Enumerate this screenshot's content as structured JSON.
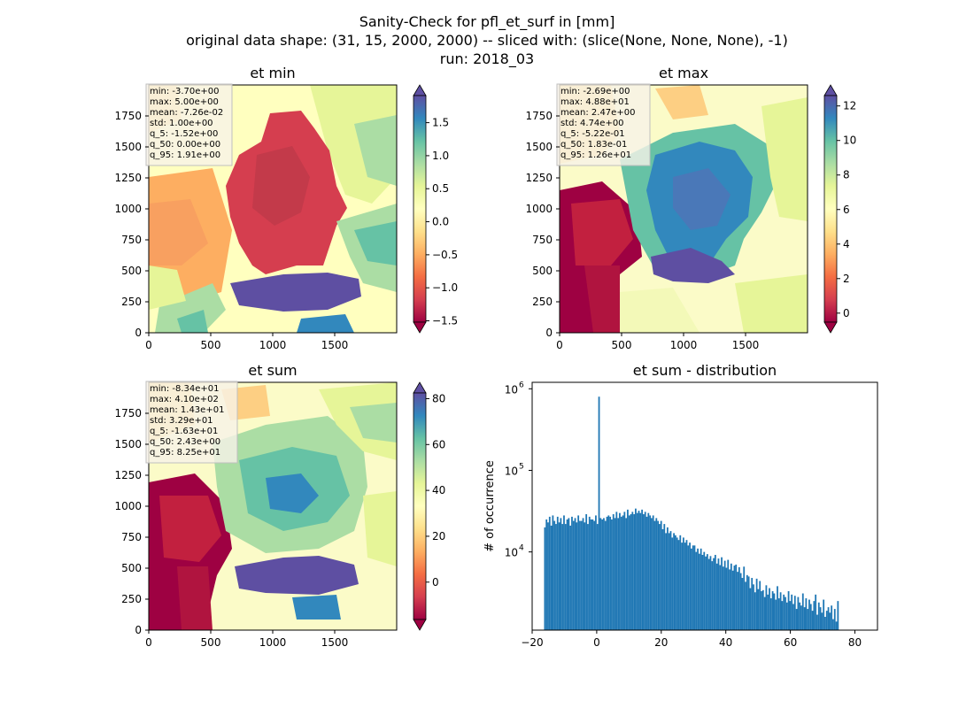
{
  "suptitle": {
    "line1": "Sanity-Check for pfl_et_surf in [mm]",
    "line2": "original data shape: (31, 15, 2000, 2000) -- sliced with: (slice(None, None, None), -1)",
    "line3": "run: 2018_03"
  },
  "panels": [
    {
      "title": "et min",
      "stats": [
        "min: -3.70e+00",
        "max: 5.00e+00",
        "mean: -7.26e-02",
        "std: 1.00e+00",
        "q_5: -1.52e+00",
        "q_50: 0.00e+00",
        "q_95: 1.91e+00"
      ],
      "xticks": [
        "0",
        "500",
        "1000",
        "1500"
      ],
      "yticks": [
        "0",
        "250",
        "500",
        "750",
        "1000",
        "1250",
        "1500",
        "1750"
      ],
      "colorbar": {
        "vmin": -1.52,
        "vmax": 1.91,
        "ticks": [
          "1.5",
          "1.0",
          "0.5",
          "0.0",
          "−0.5",
          "−1.0",
          "−1.5"
        ],
        "tick_values": [
          1.5,
          1.0,
          0.5,
          0.0,
          -0.5,
          -1.0,
          -1.5
        ],
        "colormap": "Spectral"
      }
    },
    {
      "title": "et max",
      "stats": [
        "min: -2.69e+00",
        "max: 4.88e+01",
        "mean: 2.47e+00",
        "std: 4.74e+00",
        "q_5: -5.22e-01",
        "q_50: 1.83e-01",
        "q_95: 1.26e+01"
      ],
      "xticks": [
        "0",
        "500",
        "1000",
        "1500"
      ],
      "yticks": [
        "0",
        "250",
        "500",
        "750",
        "1000",
        "1250",
        "1500",
        "1750"
      ],
      "colorbar": {
        "vmin": -0.522,
        "vmax": 12.6,
        "ticks": [
          "12",
          "10",
          "8",
          "6",
          "4",
          "2",
          "0"
        ],
        "tick_values": [
          12,
          10,
          8,
          6,
          4,
          2,
          0
        ],
        "colormap": "Spectral"
      }
    },
    {
      "title": "et sum",
      "stats": [
        "min: -8.34e+01",
        "max: 4.10e+02",
        "mean: 1.43e+01",
        "std: 3.29e+01",
        "q_5: -1.63e+01",
        "q_50: 2.43e+00",
        "q_95: 8.25e+01"
      ],
      "xticks": [
        "0",
        "500",
        "1000",
        "1500"
      ],
      "yticks": [
        "0",
        "250",
        "500",
        "750",
        "1000",
        "1250",
        "1500",
        "1750"
      ],
      "colorbar": {
        "vmin": -16.3,
        "vmax": 82.5,
        "ticks": [
          "80",
          "60",
          "40",
          "20",
          "0"
        ],
        "tick_values": [
          80,
          60,
          40,
          20,
          0
        ],
        "colormap": "Spectral"
      }
    }
  ],
  "chart_data": [
    {
      "type": "heatmap",
      "title": "et min",
      "xlim": [
        0,
        2000
      ],
      "ylim": [
        0,
        2000
      ],
      "colormap": "Spectral",
      "clim": [
        -1.52,
        1.91
      ]
    },
    {
      "type": "heatmap",
      "title": "et max",
      "xlim": [
        0,
        2000
      ],
      "ylim": [
        0,
        2000
      ],
      "colormap": "Spectral",
      "clim": [
        -0.522,
        12.6
      ]
    },
    {
      "type": "heatmap",
      "title": "et sum",
      "xlim": [
        0,
        2000
      ],
      "ylim": [
        0,
        2000
      ],
      "colormap": "Spectral",
      "clim": [
        -16.3,
        82.5
      ]
    },
    {
      "type": "bar",
      "title": "et sum - distribution",
      "ylabel": "# of occurrence",
      "xlabel": "",
      "yscale": "log",
      "xlim": [
        -20,
        87
      ],
      "ylim": [
        1100,
        1200000
      ],
      "xticks": [
        "−20",
        "0",
        "20",
        "40",
        "60",
        "80"
      ],
      "xtick_values": [
        -20,
        0,
        20,
        40,
        60,
        80
      ],
      "yticks": [
        "10^4",
        "10^5",
        "10^6"
      ],
      "ytick_values": [
        10000,
        100000,
        1000000
      ],
      "bar_color": "#1f77b4",
      "bin_start": -16.3,
      "bin_width": 0.4935,
      "counts": [
        20000,
        25000,
        23000,
        27000,
        21000,
        28000,
        24000,
        22000,
        27000,
        23000,
        26000,
        22000,
        28000,
        22000,
        25000,
        26000,
        21000,
        27000,
        24000,
        26000,
        23000,
        28000,
        24000,
        24000,
        26000,
        23000,
        29000,
        22000,
        27000,
        25000,
        25000,
        24000,
        28000,
        22000,
        800000,
        26000,
        25000,
        26000,
        24000,
        27000,
        28000,
        27000,
        25000,
        29000,
        26000,
        31000,
        26000,
        30000,
        27000,
        28000,
        31000,
        26000,
        33000,
        28000,
        29000,
        31000,
        29000,
        34000,
        30000,
        32000,
        30000,
        33000,
        29000,
        31000,
        27000,
        30000,
        28000,
        26000,
        28000,
        24000,
        26000,
        24000,
        22000,
        24000,
        19000,
        22000,
        17000,
        20000,
        17000,
        18000,
        15000,
        17000,
        16000,
        15000,
        14000,
        16000,
        13000,
        15000,
        13000,
        14000,
        12000,
        13000,
        11000,
        12000,
        12000,
        10000,
        11000,
        9500,
        11000,
        9200,
        10000,
        8800,
        9400,
        8200,
        8900,
        7700,
        8400,
        9200,
        7200,
        8300,
        6900,
        8600,
        6600,
        7800,
        6400,
        8000,
        6100,
        7200,
        5900,
        6800,
        7000,
        5700,
        6500,
        5500,
        4800,
        6600,
        4300,
        5200,
        5000,
        3600,
        4800,
        4000,
        3200,
        4700,
        3500,
        4400,
        3300,
        3400,
        2800,
        3900,
        3000,
        3600,
        2700,
        3300,
        3100,
        2600,
        3800,
        2700,
        3200,
        2500,
        3000,
        2800,
        2400,
        3300,
        2500,
        3000,
        2300,
        2900,
        2000,
        2800,
        2400,
        2200,
        3100,
        2100,
        2700,
        2000,
        2600,
        2300,
        1900,
        2500,
        3000,
        1700,
        2400,
        2100,
        1800,
        2600,
        1600,
        1900,
        2100,
        1800,
        2200,
        1500,
        2000,
        1400,
        2500
      ]
    }
  ]
}
